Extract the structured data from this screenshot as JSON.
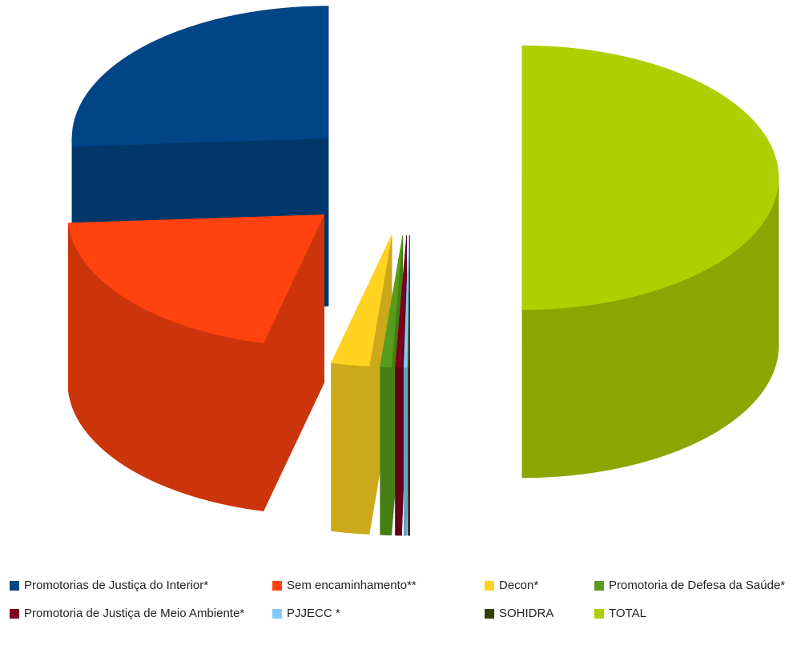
{
  "chart_data": {
    "type": "pie",
    "categories": [
      "Promotorias de Justiça do Interior*",
      "Sem encaminhamento**",
      "Decon*",
      "Promotoria de Defesa da Saúde*",
      "Promotoria de Justiça de Meio Ambiente*",
      "PJJECC *",
      "SOHIDRA",
      "TOTAL"
    ],
    "values": [
      26,
      20.2,
      2.4,
      0.7,
      0.4,
      0.2,
      0.1,
      50
    ],
    "colors": [
      "#004586",
      "#ff420e",
      "#ffd320",
      "#579d1c",
      "#7e0021",
      "#83caff",
      "#314004",
      "#aecf00"
    ],
    "legend": "bottom"
  }
}
